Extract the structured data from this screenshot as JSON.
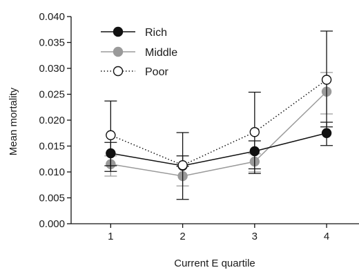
{
  "chart_data": {
    "type": "line",
    "title": "",
    "xlabel": "Current E quartile",
    "ylabel": "Mean mortality",
    "x": [
      1,
      2,
      3,
      4
    ],
    "xticks": [
      "1",
      "2",
      "3",
      "4"
    ],
    "xlim": [
      0.45,
      4.45
    ],
    "ylim": [
      0,
      0.04
    ],
    "yticks": [
      "0.000",
      "0.005",
      "0.010",
      "0.015",
      "0.020",
      "0.025",
      "0.030",
      "0.035",
      "0.040"
    ],
    "grid": false,
    "legend_position": "top-left",
    "series": [
      {
        "name": "Rich",
        "values": [
          0.0136,
          0.0112,
          0.014,
          0.0175
        ],
        "err_low": [
          0.0101,
          0.0047,
          0.0097,
          0.0151
        ],
        "err_high": [
          0.0157,
          0.0131,
          0.016,
          0.0196
        ],
        "line_style": "solid",
        "line_color": "#111111",
        "marker_fill": "#111111",
        "marker_stroke": "#111111",
        "err_color": "#111111"
      },
      {
        "name": "Middle",
        "values": [
          0.0115,
          0.0092,
          0.012,
          0.0255
        ],
        "err_low": [
          0.0092,
          0.0073,
          0.01,
          0.0212
        ],
        "err_high": [
          0.0131,
          0.0111,
          0.0135,
          0.0292
        ],
        "line_style": "solid",
        "line_color": "#9a9a9a",
        "marker_fill": "#9a9a9a",
        "marker_stroke": "#9a9a9a",
        "err_color": "#9a9a9a"
      },
      {
        "name": "Poor",
        "values": [
          0.0171,
          0.0113,
          0.0177,
          0.0278
        ],
        "err_low": [
          0.0112,
          0.0111,
          0.0106,
          0.0187
        ],
        "err_high": [
          0.0237,
          0.0176,
          0.0254,
          0.0372
        ],
        "line_style": "dotted",
        "line_color": "#111111",
        "marker_fill": "#ffffff",
        "marker_stroke": "#111111",
        "err_color": "#111111"
      }
    ]
  }
}
